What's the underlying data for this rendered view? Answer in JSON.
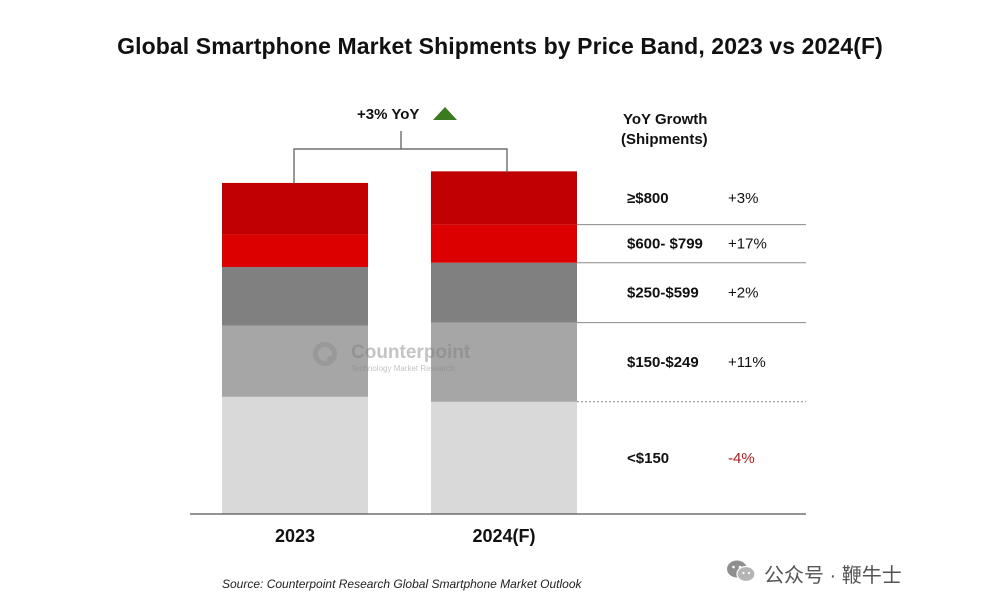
{
  "title": "Global Smartphone Market Shipments by Price Band, 2023 vs 2024(F)",
  "source": "Source: Counterpoint Research Global Smartphone Market Outlook",
  "watermark": {
    "name": "Counterpoint",
    "sub": "Technology Market Research"
  },
  "badge": {
    "text": "公众号 · 鞭牛士",
    "icon": "wechat-icon"
  },
  "colors": {
    "band_800_plus": "#c00000",
    "band_600_799": "#dd0000",
    "band_250_599": "#808080",
    "band_150_249": "#a6a6a6",
    "band_under_150": "#d9d9d9",
    "up_arrow": "#3b7a1e",
    "negative": "#b01a1a"
  },
  "chart_data": {
    "type": "bar",
    "stacked": true,
    "categories": [
      "2023",
      "2024(F)"
    ],
    "series": [
      {
        "name": "<$150",
        "values": [
          35.4,
          33.9
        ]
      },
      {
        "name": "$150-$249",
        "values": [
          21.5,
          23.9
        ]
      },
      {
        "name": "$250-$599",
        "values": [
          17.7,
          18.1
        ]
      },
      {
        "name": "$600- $799",
        "values": [
          9.8,
          11.5
        ]
      },
      {
        "name": "≥$800",
        "values": [
          15.6,
          16.1
        ]
      }
    ],
    "annotation": "+3% YoY",
    "growth_header": [
      "YoY Growth",
      "(Shipments)"
    ],
    "growth": [
      {
        "band": "≥$800",
        "value": "+3%"
      },
      {
        "band": "$600- $799",
        "value": "+17%"
      },
      {
        "band": "$250-$599",
        "value": "+2%"
      },
      {
        "band": "$150-$249",
        "value": "+11%"
      },
      {
        "band": "<$150",
        "value": "-4%"
      }
    ],
    "ylim": [
      0,
      103
    ],
    "grid": false,
    "legend": "right"
  }
}
